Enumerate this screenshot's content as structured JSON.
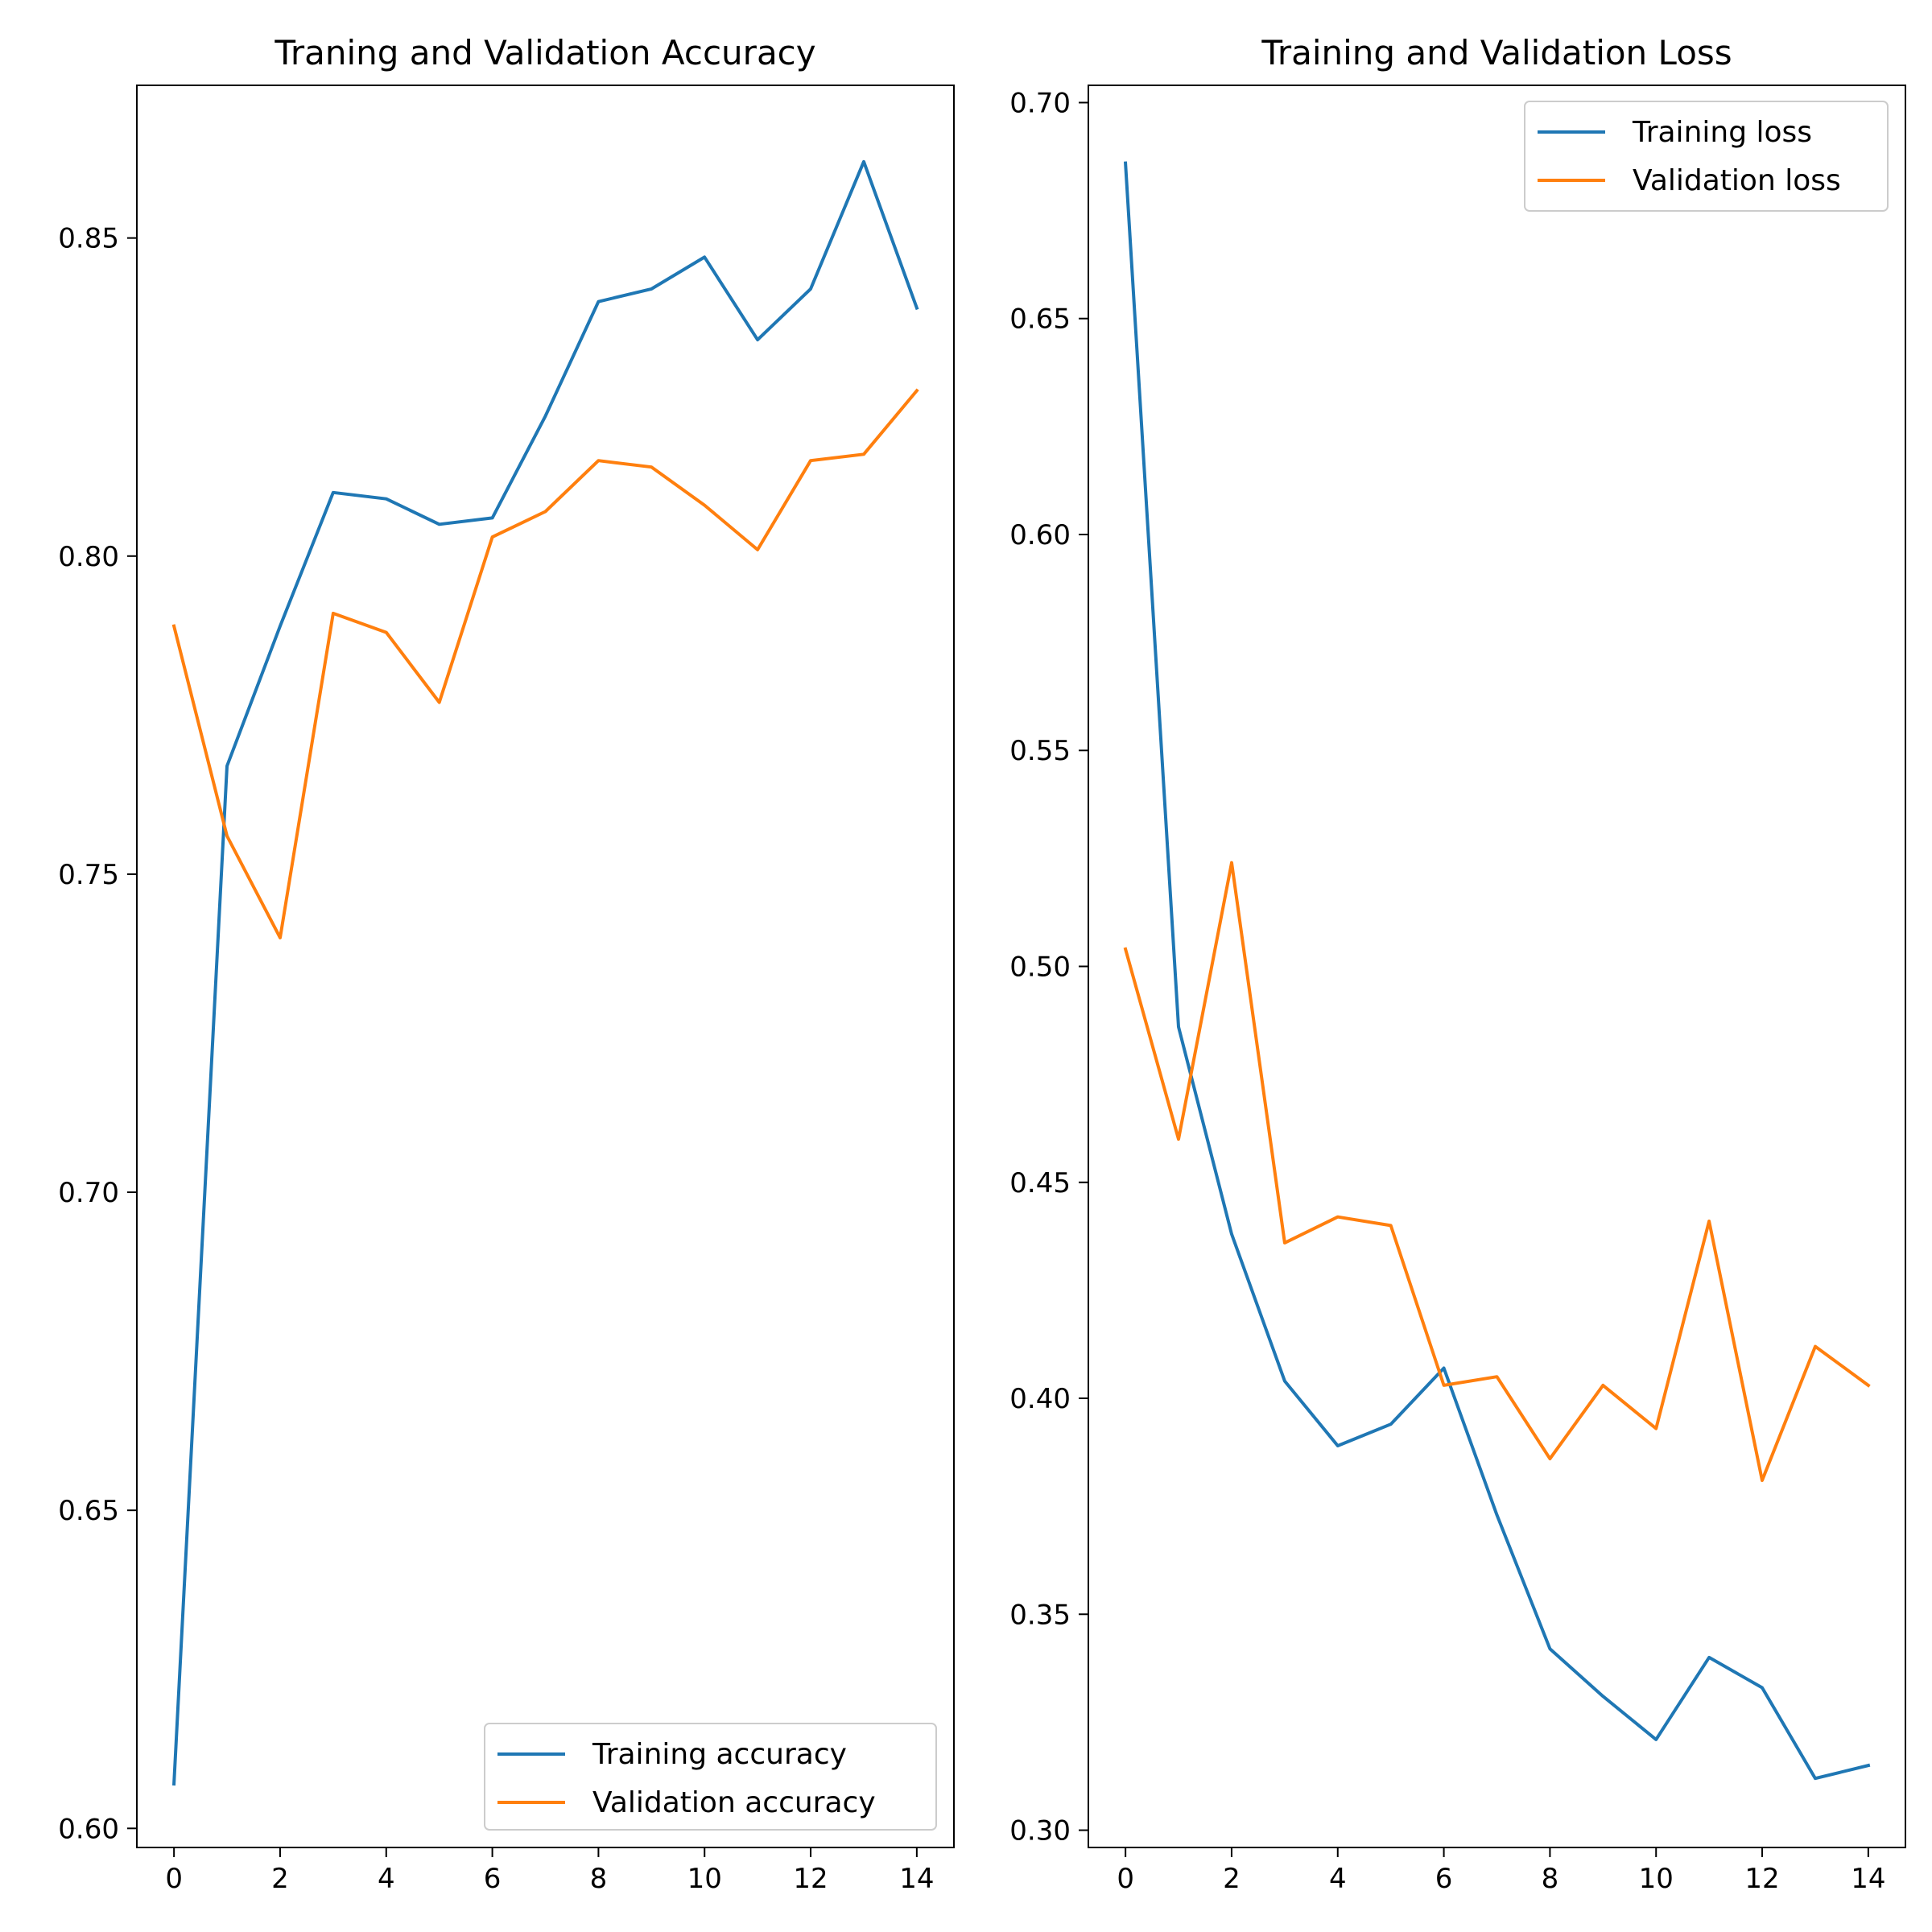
{
  "chart_data": [
    {
      "type": "line",
      "title": "Traning and Validation Accuracy",
      "xlabel": "",
      "ylabel": "",
      "x": [
        0,
        1,
        2,
        3,
        4,
        5,
        6,
        7,
        8,
        9,
        10,
        11,
        12,
        13,
        14
      ],
      "xlim": [
        -0.7,
        14.7
      ],
      "ylim": [
        0.597,
        0.874
      ],
      "xticks": [
        0,
        2,
        4,
        6,
        8,
        10,
        12,
        14
      ],
      "yticks": [
        0.6,
        0.65,
        0.7,
        0.75,
        0.8,
        0.85
      ],
      "ytick_labels": [
        "0.60",
        "0.65",
        "0.70",
        "0.75",
        "0.80",
        "0.85"
      ],
      "grid": false,
      "legend_position": "lower-right",
      "series": [
        {
          "name": "Training accuracy",
          "color": "#1f77b4",
          "values": [
            0.607,
            0.767,
            0.789,
            0.81,
            0.809,
            0.805,
            0.806,
            0.822,
            0.84,
            0.842,
            0.847,
            0.834,
            0.842,
            0.862,
            0.839
          ]
        },
        {
          "name": "Validation accuracy",
          "color": "#ff7f0e",
          "values": [
            0.789,
            0.756,
            0.74,
            0.791,
            0.788,
            0.777,
            0.803,
            0.807,
            0.815,
            0.814,
            0.808,
            0.801,
            0.815,
            0.816,
            0.826
          ]
        }
      ]
    },
    {
      "type": "line",
      "title": "Training and Validation Loss",
      "xlabel": "",
      "ylabel": "",
      "x": [
        0,
        1,
        2,
        3,
        4,
        5,
        6,
        7,
        8,
        9,
        10,
        11,
        12,
        13,
        14
      ],
      "xlim": [
        -0.7,
        14.7
      ],
      "ylim": [
        0.296,
        0.704
      ],
      "xticks": [
        0,
        2,
        4,
        6,
        8,
        10,
        12,
        14
      ],
      "yticks": [
        0.3,
        0.35,
        0.4,
        0.45,
        0.5,
        0.55,
        0.6,
        0.65,
        0.7
      ],
      "ytick_labels": [
        "0.30",
        "0.35",
        "0.40",
        "0.45",
        "0.50",
        "0.55",
        "0.60",
        "0.65",
        "0.70"
      ],
      "grid": false,
      "legend_position": "upper-right",
      "series": [
        {
          "name": "Training loss",
          "color": "#1f77b4",
          "values": [
            0.686,
            0.486,
            0.438,
            0.404,
            0.389,
            0.394,
            0.407,
            0.373,
            0.342,
            0.331,
            0.321,
            0.34,
            0.333,
            0.312,
            0.315
          ]
        },
        {
          "name": "Validation loss",
          "color": "#ff7f0e",
          "values": [
            0.504,
            0.46,
            0.524,
            0.436,
            0.442,
            0.44,
            0.403,
            0.405,
            0.386,
            0.403,
            0.393,
            0.441,
            0.381,
            0.412,
            0.403
          ]
        }
      ]
    }
  ]
}
